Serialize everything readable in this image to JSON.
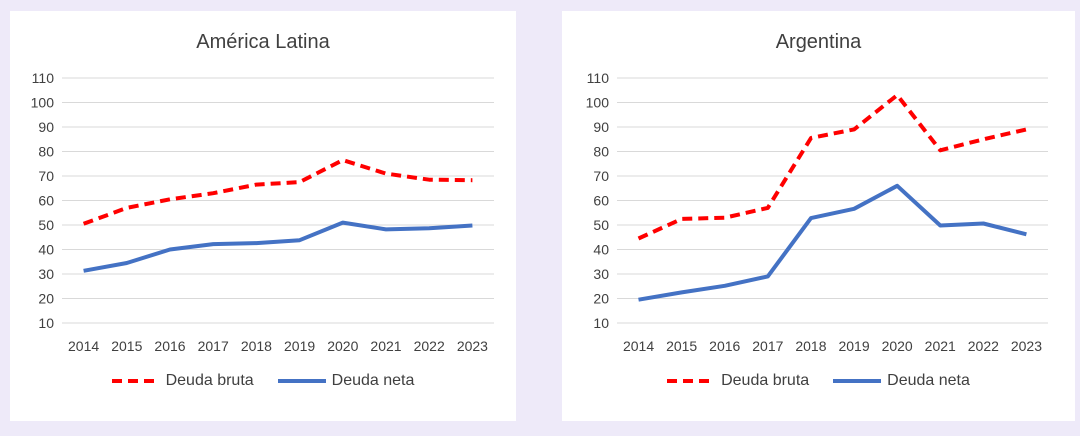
{
  "colors": {
    "bruta": "#ff0000",
    "neta": "#4472c4",
    "grid": "#d9d9d9",
    "text": "#404040"
  },
  "chart_data": [
    {
      "type": "line",
      "title": "América Latina",
      "categories": [
        "2014",
        "2015",
        "2016",
        "2017",
        "2018",
        "2019",
        "2020",
        "2021",
        "2022",
        "2023"
      ],
      "series": [
        {
          "name": "Deuda bruta",
          "style": "dashed",
          "color": "#ff0000",
          "values": [
            50.5,
            57,
            60.5,
            63,
            66.5,
            67.5,
            76.5,
            71,
            68.5,
            68.3
          ]
        },
        {
          "name": "Deuda neta",
          "style": "solid",
          "color": "#4472c4",
          "values": [
            31.3,
            34.5,
            40,
            42.2,
            42.6,
            43.8,
            51,
            48.2,
            48.7,
            49.8
          ]
        }
      ],
      "yticks": [
        "10",
        "20",
        "30",
        "40",
        "50",
        "60",
        "70",
        "80",
        "90",
        "100",
        "110"
      ],
      "ylim": [
        10,
        110
      ],
      "grid": true,
      "legend": "bottom"
    },
    {
      "type": "line",
      "title": "Argentina",
      "categories": [
        "2014",
        "2015",
        "2016",
        "2017",
        "2018",
        "2019",
        "2020",
        "2021",
        "2022",
        "2023"
      ],
      "series": [
        {
          "name": "Deuda bruta",
          "style": "dashed",
          "color": "#ff0000",
          "values": [
            44.5,
            52.5,
            53,
            57,
            85.5,
            89,
            103,
            80.5,
            85,
            89
          ]
        },
        {
          "name": "Deuda neta",
          "style": "solid",
          "color": "#4472c4",
          "values": [
            19.5,
            22.5,
            25.2,
            29,
            52.8,
            56.6,
            66,
            49.8,
            50.6,
            46.2
          ]
        }
      ],
      "yticks": [
        "10",
        "20",
        "30",
        "40",
        "50",
        "60",
        "70",
        "80",
        "90",
        "100",
        "110"
      ],
      "ylim": [
        10,
        110
      ],
      "grid": true,
      "legend": "bottom"
    }
  ]
}
